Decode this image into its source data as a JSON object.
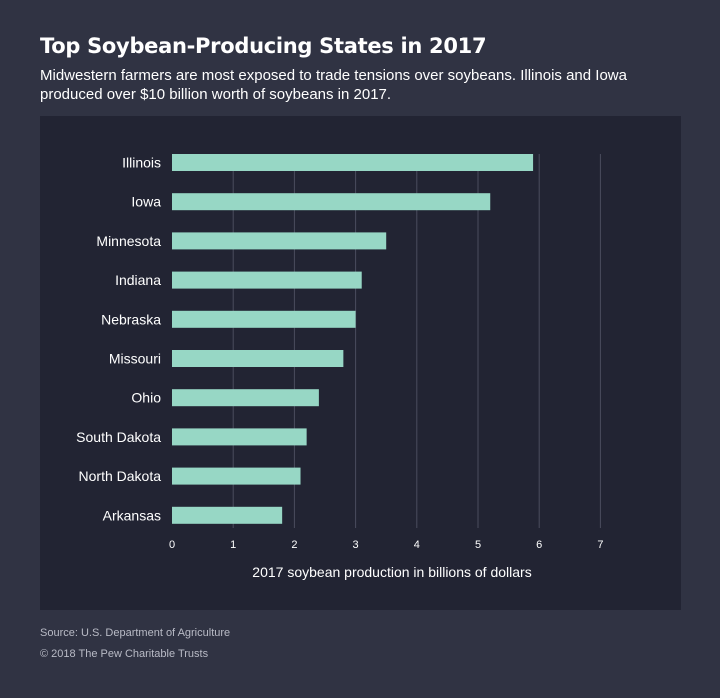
{
  "title": "Top Soybean-Producing States in 2017",
  "subtitle": "Midwestern farmers are most exposed to trade tensions over soybeans. Illinois and Iowa produced over $10 billion worth of soybeans in 2017.",
  "source": "Source: U.S. Department of Agriculture",
  "copyright": "© 2018 The Pew Charitable Trusts",
  "colors": {
    "background": "#303343",
    "panel": "#222433",
    "bar": "#97d7c5",
    "grid": "#4a4d5e",
    "text": "#ffffff"
  },
  "chart_data": {
    "type": "bar",
    "orientation": "horizontal",
    "categories": [
      "Illinois",
      "Iowa",
      "Minnesota",
      "Indiana",
      "Nebraska",
      "Missouri",
      "Ohio",
      "South Dakota",
      "North Dakota",
      "Arkansas"
    ],
    "values": [
      5.9,
      5.2,
      3.5,
      3.1,
      3.0,
      2.8,
      2.4,
      2.2,
      2.1,
      1.8
    ],
    "xlabel": "2017 soybean production in billions of dollars",
    "ylabel": "",
    "xlim": [
      0,
      7
    ],
    "xticks": [
      0,
      1,
      2,
      3,
      4,
      5,
      6,
      7
    ],
    "grid": true
  }
}
